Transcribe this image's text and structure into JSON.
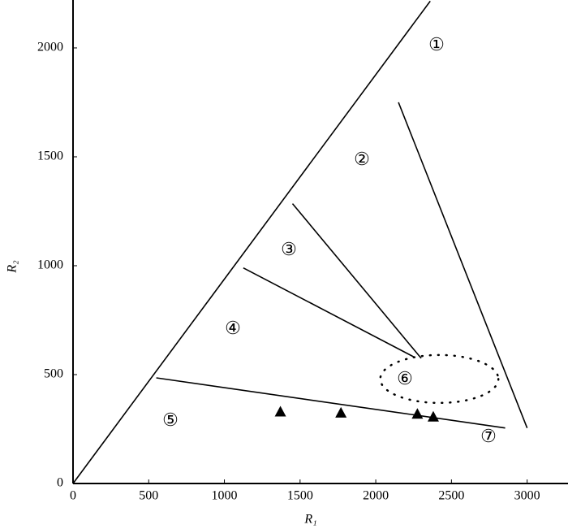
{
  "chart_data": {
    "type": "scatter",
    "xlabel": "R₁",
    "ylabel": "R₂",
    "xlim": [
      0,
      3270
    ],
    "ylim": [
      0,
      2220
    ],
    "xticks": [
      0,
      500,
      1000,
      1500,
      2000,
      2500,
      3000
    ],
    "yticks": [
      0,
      500,
      1000,
      1500,
      2000
    ],
    "points": {
      "x": [
        1370,
        1770,
        2275,
        2380
      ],
      "y": [
        330,
        325,
        320,
        307
      ],
      "color": "#000000"
    },
    "boundaries": [
      {
        "x": [
          0,
          2360
        ],
        "y": [
          0,
          2215
        ]
      },
      {
        "x": [
          2150,
          3000
        ],
        "y": [
          1750,
          255
        ]
      },
      {
        "x": [
          1450,
          2300
        ],
        "y": [
          1285,
          575
        ]
      },
      {
        "x": [
          1125,
          2255
        ],
        "y": [
          990,
          580
        ]
      },
      {
        "x": [
          550,
          2855
        ],
        "y": [
          485,
          255
        ]
      }
    ],
    "ellipse": {
      "cx": 2420,
      "cy": 480,
      "rx": 390,
      "ry": 110
    },
    "annotations": [
      "①",
      "②",
      "③",
      "④",
      "⑤",
      "⑥",
      "⑦"
    ]
  }
}
